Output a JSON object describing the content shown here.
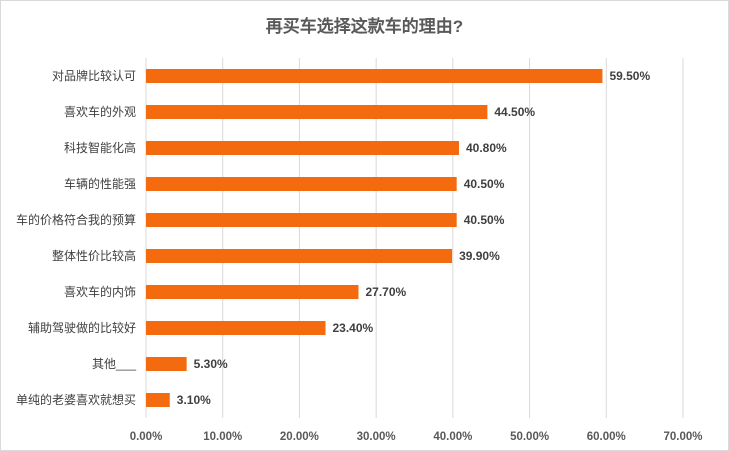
{
  "chart_data": {
    "type": "bar",
    "orientation": "horizontal",
    "title": "再买车选择这款车的理由?",
    "categories": [
      "对品牌比较认可",
      "喜欢车的外观",
      "科技智能化高",
      "车辆的性能强",
      "车的价格符合我的预算",
      "整体性价比较高",
      "喜欢车的内饰",
      "辅助驾驶做的比较好",
      "其他___",
      "单纯的老婆喜欢就想买"
    ],
    "values": [
      59.5,
      44.5,
      40.8,
      40.5,
      40.5,
      39.9,
      27.7,
      23.4,
      5.3,
      3.1
    ],
    "value_labels": [
      "59.50%",
      "44.50%",
      "40.80%",
      "40.50%",
      "40.50%",
      "39.90%",
      "27.70%",
      "23.40%",
      "5.30%",
      "3.10%"
    ],
    "xlim": [
      0,
      70
    ],
    "x_ticks": [
      "0.00%",
      "10.00%",
      "20.00%",
      "30.00%",
      "40.00%",
      "50.00%",
      "60.00%",
      "70.00%"
    ],
    "grid": true,
    "legend": "none",
    "bar_color": "#F46B0F",
    "gridline_color": "#D9D9D9"
  }
}
